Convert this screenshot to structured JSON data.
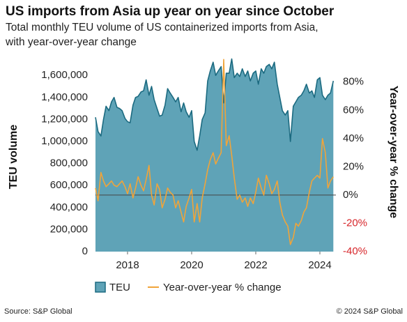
{
  "chart_data": {
    "type": "area-line",
    "title": "US imports from Asia up year on year since October",
    "subtitle": [
      "Total monthly TEU volume of US containerized imports from Asia,",
      "with year-over-year change"
    ],
    "ylabel": "TEU volume",
    "y2label": "Year-over-year % change",
    "source": "Source: S&P Global",
    "copyright": "© 2024 S&P Global",
    "x": [
      2017,
      2017.08,
      2017.17,
      2017.25,
      2017.33,
      2017.42,
      2017.5,
      2017.58,
      2017.67,
      2017.75,
      2017.83,
      2017.92,
      2018,
      2018.08,
      2018.17,
      2018.25,
      2018.33,
      2018.42,
      2018.5,
      2018.58,
      2018.67,
      2018.75,
      2018.83,
      2018.92,
      2019,
      2019.08,
      2019.17,
      2019.25,
      2019.33,
      2019.42,
      2019.5,
      2019.58,
      2019.67,
      2019.75,
      2019.83,
      2019.92,
      2020,
      2020.08,
      2020.17,
      2020.25,
      2020.33,
      2020.42,
      2020.5,
      2020.58,
      2020.67,
      2020.75,
      2020.83,
      2020.92,
      2021,
      2021.08,
      2021.17,
      2021.25,
      2021.33,
      2021.42,
      2021.5,
      2021.58,
      2021.67,
      2021.75,
      2021.83,
      2021.92,
      2022,
      2022.08,
      2022.17,
      2022.25,
      2022.33,
      2022.42,
      2022.5,
      2022.58,
      2022.67,
      2022.75,
      2022.83,
      2022.92,
      2023,
      2023.08,
      2023.17,
      2023.25,
      2023.33,
      2023.42,
      2023.5,
      2023.58,
      2023.67,
      2023.75,
      2023.83,
      2023.92,
      2024,
      2024.08,
      2024.17,
      2024.25,
      2024.33,
      2024.42
    ],
    "series": [
      {
        "name": "TEU",
        "color": "#5fa3b7",
        "edge": "#1b6a80",
        "axis": "y",
        "values": [
          1220000,
          1090000,
          1050000,
          1200000,
          1320000,
          1280000,
          1360000,
          1400000,
          1310000,
          1300000,
          1280000,
          1210000,
          1180000,
          1170000,
          1330000,
          1400000,
          1410000,
          1450000,
          1460000,
          1560000,
          1420000,
          1500000,
          1380000,
          1300000,
          1230000,
          1240000,
          1330000,
          1480000,
          1440000,
          1400000,
          1360000,
          1400000,
          1270000,
          1350000,
          1270000,
          1220000,
          1280000,
          1000000,
          920000,
          1050000,
          1200000,
          1260000,
          1550000,
          1640000,
          1720000,
          1600000,
          1640000,
          1680000,
          1350000,
          1620000,
          1620000,
          1750000,
          1580000,
          1620000,
          1590000,
          1660000,
          1590000,
          1640000,
          1550000,
          1620000,
          1640000,
          1520000,
          1660000,
          1620000,
          1680000,
          1700000,
          1660000,
          1720000,
          1520000,
          1400000,
          1280000,
          1240000,
          1280000,
          1000000,
          1320000,
          1360000,
          1400000,
          1420000,
          1460000,
          1520000,
          1440000,
          1460000,
          1400000,
          1560000,
          1580000,
          1420000,
          1380000,
          1420000,
          1440000,
          1550000
        ]
      },
      {
        "name": "Year-over-year % change",
        "color": "#f0a43a",
        "axis": "y2",
        "values": [
          5,
          -4,
          16,
          10,
          6,
          8,
          10,
          7,
          6,
          8,
          10,
          6,
          1,
          8,
          -2,
          5,
          13,
          7,
          3,
          11,
          21,
          0,
          -7,
          8,
          4,
          -9,
          -3,
          5,
          2,
          0,
          -9,
          -4,
          -12,
          -19,
          -8,
          -2,
          4,
          -19,
          -6,
          -19,
          -2,
          8,
          18,
          25,
          30,
          22,
          26,
          30,
          96,
          35,
          42,
          28,
          12,
          -3,
          0,
          -5,
          -2,
          -8,
          -2,
          -6,
          2,
          12,
          5,
          0,
          14,
          8,
          1,
          4,
          10,
          -5,
          -14,
          -19,
          -22,
          -35,
          -30,
          -20,
          -22,
          -18,
          -12,
          -9,
          2,
          10,
          12,
          14,
          12,
          40,
          30,
          5,
          10,
          13
        ]
      }
    ],
    "xlim": [
      2017,
      2024.5
    ],
    "xticks": [
      2018,
      2020,
      2022,
      2024
    ],
    "ylim": [
      0,
      1750000
    ],
    "yticks": [
      0,
      {
        "value": 200000,
        "label": "200,000"
      },
      {
        "value": 400000,
        "label": "400,000"
      },
      {
        "value": 600000,
        "label": "600,000"
      },
      {
        "value": 800000,
        "label": "800,000"
      },
      {
        "value": 1000000,
        "label": "1,000,000"
      },
      {
        "value": 1200000,
        "label": "1,200,000"
      },
      {
        "value": 1400000,
        "label": "1,400,000"
      },
      {
        "value": 1600000,
        "label": "1,600,000"
      }
    ],
    "y2lim": [
      -40,
      96.4
    ],
    "y2ticks": [
      {
        "value": -40,
        "label": "-40%"
      },
      {
        "value": -20,
        "label": "-20%"
      },
      {
        "value": 0,
        "label": "0%"
      },
      {
        "value": 20,
        "label": "20%"
      },
      {
        "value": 40,
        "label": "40%"
      },
      {
        "value": 60,
        "label": "60%"
      },
      {
        "value": 80,
        "label": "80%"
      }
    ],
    "negative_color": "#d7262b",
    "grid": false
  }
}
